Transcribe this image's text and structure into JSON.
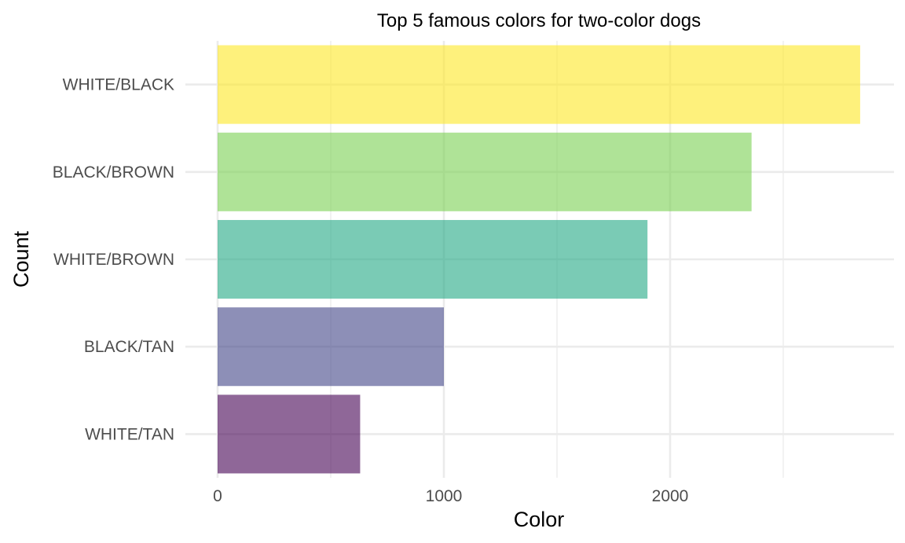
{
  "chart_data": {
    "type": "bar",
    "orientation": "horizontal",
    "title": "Top 5 famous colors for two-color dogs",
    "xlabel": "Color",
    "ylabel": "Count",
    "categories": [
      "WHITE/BLACK",
      "BLACK/BROWN",
      "WHITE/BROWN",
      "BLACK/TAN",
      "WHITE/TAN"
    ],
    "values": [
      2840,
      2360,
      1900,
      1000,
      630
    ],
    "colors": [
      "#FDE725",
      "#7AD151",
      "#22A884",
      "#414487",
      "#440154"
    ],
    "bar_opacity": 0.6,
    "xlim": [
      0,
      2980
    ],
    "x_ticks": [
      0,
      1000,
      2000
    ],
    "x_tick_labels": [
      "0",
      "1000",
      "2000"
    ],
    "grid": true,
    "legend": "none"
  }
}
